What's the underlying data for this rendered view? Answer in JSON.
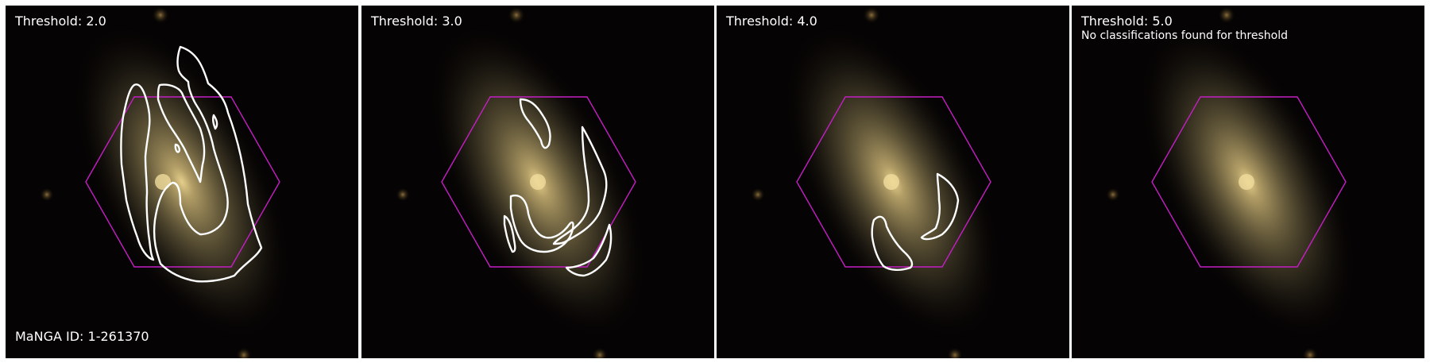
{
  "panels": [
    {
      "threshold_label": "Threshold: 2.0",
      "note": "",
      "id_label": "MaNGA ID: 1-261370"
    },
    {
      "threshold_label": "Threshold: 3.0",
      "note": "",
      "id_label": ""
    },
    {
      "threshold_label": "Threshold: 4.0",
      "note": "",
      "id_label": ""
    },
    {
      "threshold_label": "Threshold: 5.0",
      "note": "No classifications found for threshold",
      "id_label": ""
    }
  ],
  "colors": {
    "hexagon": "#c41ec4",
    "contour": "#ffffff",
    "background": "#050303",
    "galaxy_core": "#d8c080"
  }
}
